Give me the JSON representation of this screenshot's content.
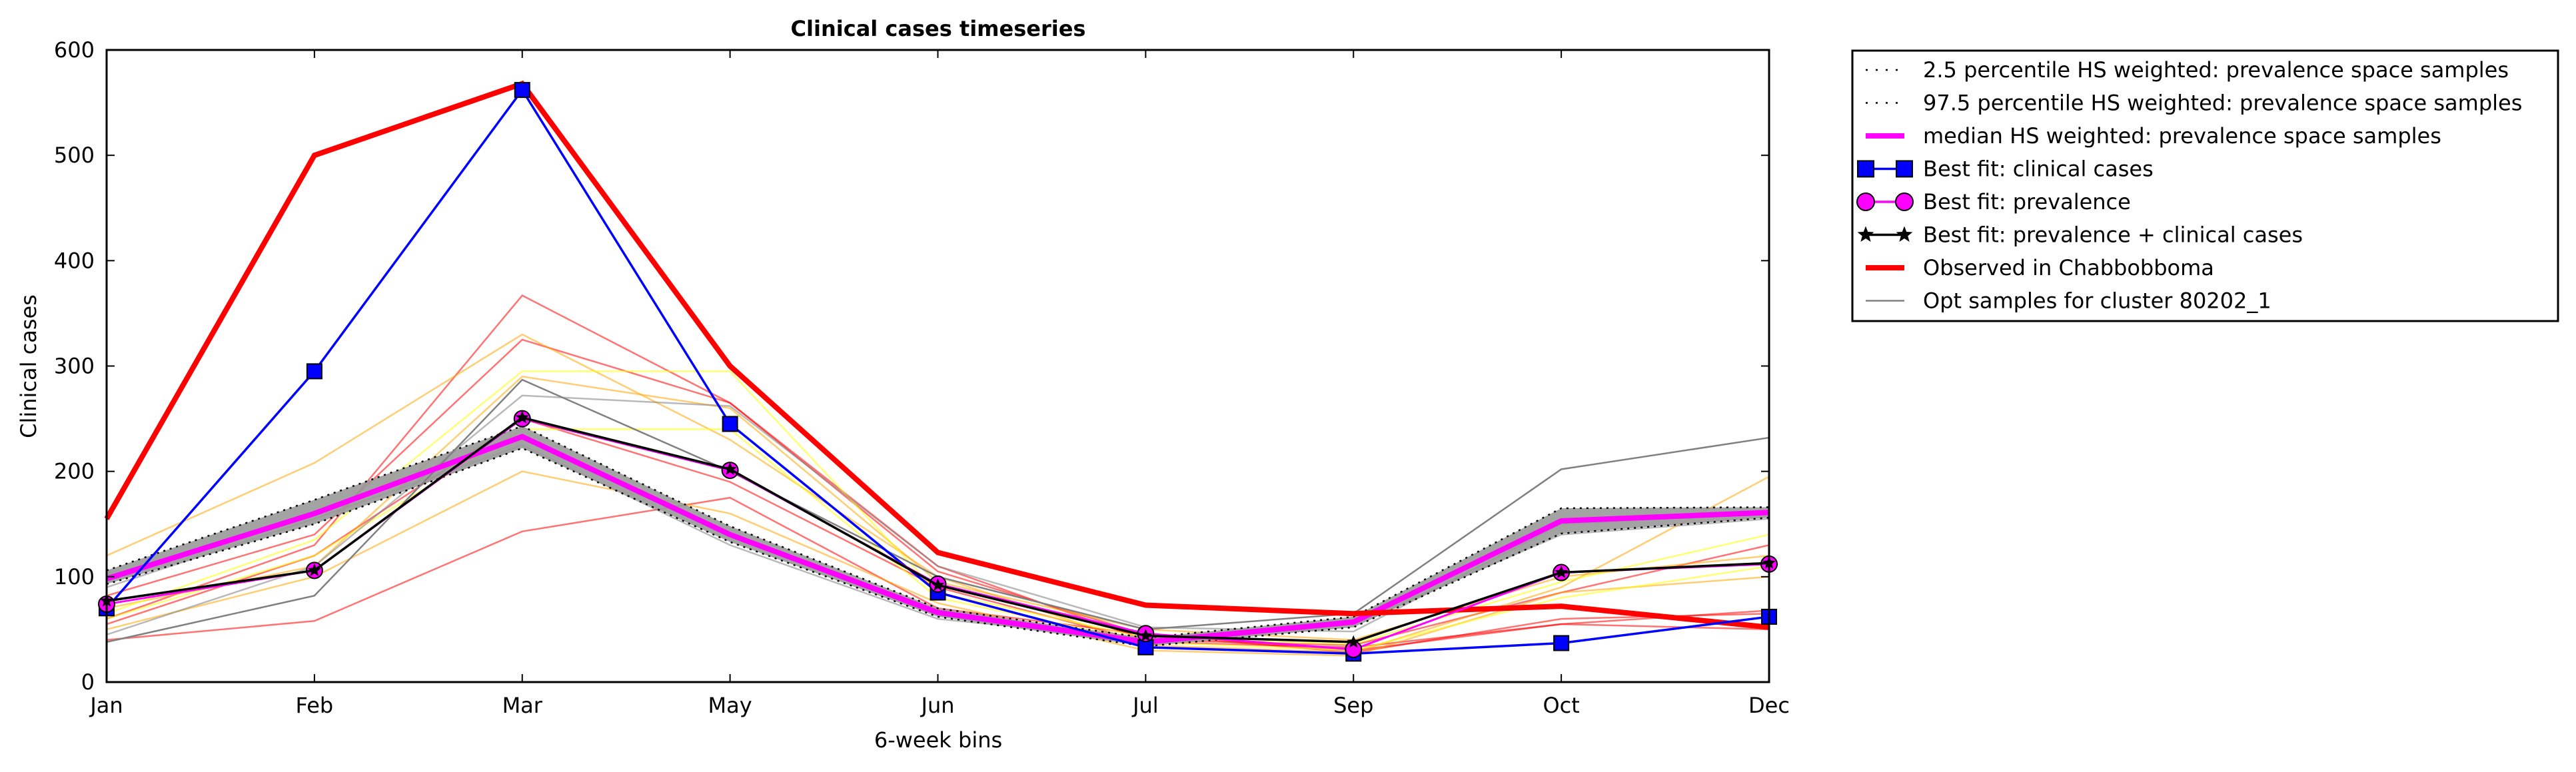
{
  "chart_data": {
    "type": "line",
    "title": "Clinical cases timeseries",
    "xlabel": "6-week bins",
    "ylabel": "Clinical cases",
    "categories": [
      "Jan",
      "Feb",
      "Mar",
      "May",
      "Jun",
      "Jul",
      "Sep",
      "Oct",
      "Dec"
    ],
    "ylim": [
      0,
      600
    ],
    "yticks": [
      0,
      100,
      200,
      300,
      400,
      500,
      600
    ],
    "grid": false,
    "legend_position": "outside-right",
    "band": {
      "lower_name": "2.5 percentile HS weighted: prevalence space samples",
      "upper_name": "97.5 percentile HS weighted: prevalence space samples",
      "lower": [
        93,
        150,
        222,
        133,
        62,
        34,
        52,
        141,
        156
      ],
      "upper": [
        106,
        173,
        243,
        148,
        70,
        42,
        62,
        165,
        166
      ],
      "fill_color": "#999999"
    },
    "series": [
      {
        "name": "median HS weighted: prevalence space samples",
        "color": "#ff00ff",
        "marker": "none",
        "values": [
          98,
          160,
          233,
          140,
          66,
          38,
          57,
          153,
          161
        ]
      },
      {
        "name": "Best fit: clinical cases",
        "color": "#0000ff",
        "marker": "square",
        "values": [
          70,
          295,
          562,
          245,
          85,
          33,
          27,
          37,
          62
        ]
      },
      {
        "name": "Best fit: prevalence",
        "color": "#ff00ff",
        "marker": "circle",
        "values": [
          74,
          106,
          250,
          201,
          93,
          46,
          31,
          104,
          112
        ]
      },
      {
        "name": "Best fit: prevalence + clinical cases",
        "color": "#000000",
        "marker": "star",
        "values": [
          77,
          106,
          251,
          202,
          92,
          44,
          38,
          104,
          113
        ]
      },
      {
        "name": "Observed in Chabbobboma",
        "color": "#ff0000",
        "marker": "none",
        "values": [
          155,
          500,
          568,
          300,
          123,
          73,
          65,
          72,
          52
        ]
      },
      {
        "name": "Opt samples for cluster 80202_1",
        "color": "#808080",
        "marker": "none",
        "values": [
          38,
          82,
          287,
          200,
          100,
          50,
          65,
          202,
          232
        ]
      }
    ],
    "sample_lines": [
      {
        "color": "#ff0000",
        "values": [
          40,
          58,
          143,
          175,
          70,
          45,
          30,
          55,
          68
        ]
      },
      {
        "color": "#ff0000",
        "values": [
          60,
          130,
          367,
          265,
          110,
          40,
          35,
          85,
          130
        ]
      },
      {
        "color": "#ff0000",
        "values": [
          82,
          140,
          325,
          265,
          105,
          45,
          28,
          60,
          65
        ]
      },
      {
        "color": "#ff0000",
        "values": [
          55,
          120,
          250,
          190,
          90,
          38,
          33,
          55,
          50
        ]
      },
      {
        "color": "#ffa500",
        "values": [
          120,
          208,
          330,
          230,
          100,
          35,
          28,
          90,
          195
        ]
      },
      {
        "color": "#ffa500",
        "values": [
          70,
          110,
          290,
          260,
          95,
          50,
          40,
          100,
          120
        ]
      },
      {
        "color": "#ffa500",
        "values": [
          50,
          100,
          200,
          160,
          75,
          30,
          25,
          85,
          100
        ]
      },
      {
        "color": "#ffff00",
        "values": [
          65,
          135,
          295,
          295,
          85,
          42,
          36,
          95,
          140
        ]
      },
      {
        "color": "#ffff00",
        "values": [
          60,
          120,
          240,
          240,
          80,
          38,
          30,
          80,
          110
        ]
      },
      {
        "color": "#808080",
        "values": [
          45,
          110,
          272,
          262,
          110,
          52,
          48,
          150,
          160
        ]
      },
      {
        "color": "#808080",
        "values": [
          90,
          155,
          225,
          130,
          60,
          40,
          55,
          140,
          155
        ]
      }
    ]
  }
}
